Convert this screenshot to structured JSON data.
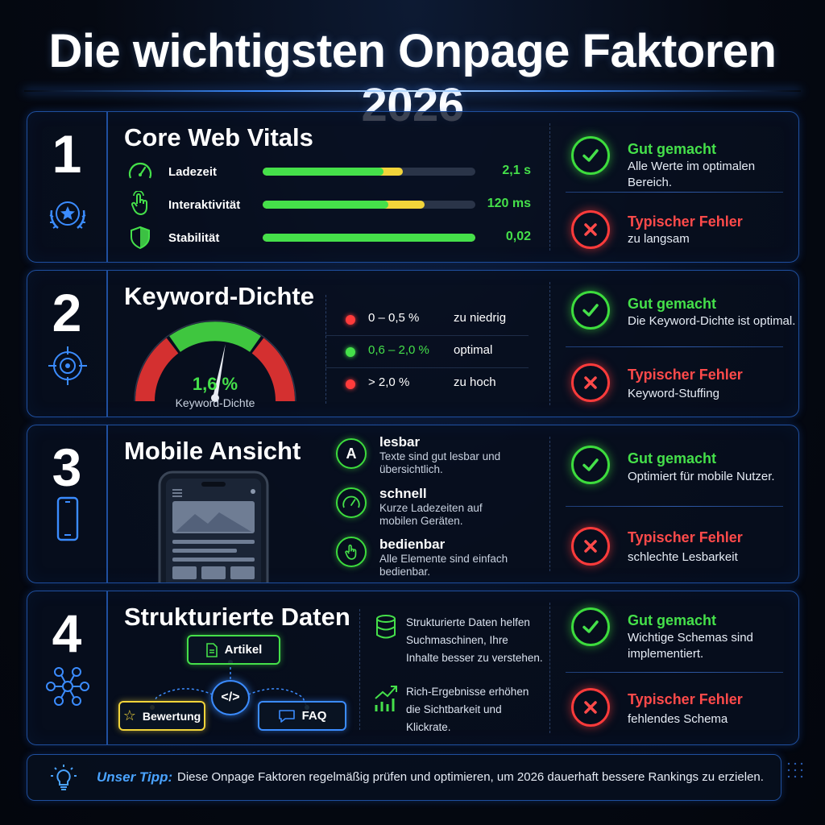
{
  "title": "Die wichtigsten Onpage Faktoren 2026",
  "colors": {
    "accent_blue": "#3b8cff",
    "good": "#45e04a",
    "bad": "#ff4a4a",
    "warn": "#f2d43a"
  },
  "panels": [
    {
      "number": "1",
      "title": "Core Web Vitals",
      "icon": "star-badge-icon",
      "metrics": [
        {
          "label": "Ladezeit",
          "value": "2,1 s",
          "icon": "speedometer-icon",
          "green_fraction": 0.57,
          "yellow_fraction": 0.09
        },
        {
          "label": "Interaktivität",
          "value": "120 ms",
          "icon": "pointer-hand-icon",
          "green_fraction": 0.59,
          "yellow_fraction": 0.17
        },
        {
          "label": "Stabilität",
          "value": "0,02",
          "icon": "shield-icon",
          "green_fraction": 1.0,
          "yellow_fraction": 0
        }
      ],
      "good_title": "Gut gemacht",
      "good_text": "Alle Werte im optimalen Bereich.",
      "bad_title": "Typischer Fehler",
      "bad_text": "zu langsam"
    },
    {
      "number": "2",
      "title": "Keyword-Dichte",
      "icon": "target-icon",
      "gauge_value": "1,6 %",
      "gauge_label": "Keyword-Dichte",
      "gauge_fraction": 0.56,
      "ranges": [
        {
          "label": "0 – 0,5 %",
          "status": "zu niedrig",
          "color": "#ff3b3b"
        },
        {
          "label": "0,6 – 2,0 %",
          "status": "optimal",
          "color": "#45e04a"
        },
        {
          "label": "> 2,0 %",
          "status": "zu hoch",
          "color": "#ff3b3b"
        }
      ],
      "good_title": "Gut gemacht",
      "good_text": "Die Keyword-Dichte ist optimal.",
      "bad_title": "Typischer Fehler",
      "bad_text": "Keyword-Stuffing"
    },
    {
      "number": "3",
      "title": "Mobile Ansicht",
      "icon": "smartphone-icon",
      "features": [
        {
          "head": "lesbar",
          "text": "Texte sind gut lesbar und übersichtlich.",
          "icon": "letter-a-icon",
          "glyph": "A"
        },
        {
          "head": "schnell",
          "text": "Kurze Ladezeiten auf mobilen Geräten.",
          "icon": "speedometer-icon"
        },
        {
          "head": "bedienbar",
          "text": "Alle Elemente sind einfach bedienbar.",
          "icon": "pointer-hand-icon"
        }
      ],
      "good_title": "Gut gemacht",
      "good_text": "Optimiert für mobile Nutzer.",
      "bad_title": "Typischer Fehler",
      "bad_text": "schlechte Lesbarkeit"
    },
    {
      "number": "4",
      "title": "Strukturierte Daten",
      "icon": "network-icon",
      "nodes": {
        "top": "Artikel",
        "left": "Bewertung",
        "right": "FAQ",
        "center_glyph": "</>"
      },
      "info": [
        {
          "text": "Strukturierte Daten helfen Suchmaschinen, Ihre Inhalte besser zu verstehen.",
          "icon": "database-icon"
        },
        {
          "text": "Rich-Ergebnisse erhöhen die Sichtbarkeit und Klickrate.",
          "icon": "growth-chart-icon"
        }
      ],
      "good_title": "Gut gemacht",
      "good_text": "Wichtige Schemas sind implementiert.",
      "bad_title": "Typischer Fehler",
      "bad_text": "fehlendes Schema"
    }
  ],
  "tip": {
    "label": "Unser Tipp:",
    "text": "Diese Onpage Faktoren regelmäßig prüfen und optimieren, um 2026 dauerhaft bessere Rankings zu erzielen.",
    "icon": "lightbulb-icon"
  }
}
